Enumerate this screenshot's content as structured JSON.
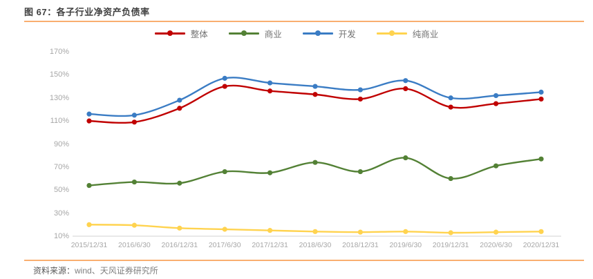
{
  "header": {
    "title": "图 67：各子行业净资产负债率"
  },
  "footer": {
    "source_label": "资料来源：",
    "source_text": "wind、天风证券研究所"
  },
  "colors": {
    "accent_rule": "#f9ae6f",
    "axis_line": "#d9d9d9",
    "tick_text": "#a6a6a6",
    "title_text": "#3f3f3f",
    "legend_text": "#737373"
  },
  "chart_data": {
    "type": "line",
    "title": "各子行业净资产负债率",
    "categories": [
      "2015/12/31",
      "2016/6/30",
      "2016/12/31",
      "2017/6/30",
      "2017/12/31",
      "2018/6/30",
      "2018/12/31",
      "2019/6/30",
      "2019/12/31",
      "2020/6/30",
      "2020/12/31"
    ],
    "series": [
      {
        "name": "整体",
        "color": "#c00000",
        "values": [
          110,
          109,
          121,
          140,
          136,
          133,
          129,
          138,
          122,
          125,
          129
        ]
      },
      {
        "name": "商业",
        "color": "#538135",
        "values": [
          54,
          57,
          56,
          66,
          65,
          74,
          66,
          78,
          60,
          71,
          77
        ]
      },
      {
        "name": "开发",
        "color": "#3a7cc4",
        "values": [
          116,
          115,
          128,
          147,
          143,
          140,
          137,
          145,
          130,
          132,
          135
        ]
      },
      {
        "name": "纯商业",
        "color": "#ffd34f",
        "values": [
          20,
          19.5,
          17,
          16,
          15,
          14,
          13.5,
          14,
          13,
          13.5,
          14
        ]
      }
    ],
    "ylim": [
      10,
      170
    ],
    "ytick_step": 20,
    "ytick_labels": [
      "10%",
      "30%",
      "50%",
      "70%",
      "90%",
      "110%",
      "130%",
      "150%",
      "170%"
    ],
    "ylabel_format": "percent",
    "grid": false,
    "smooth": true,
    "legend_position": "top-center"
  }
}
